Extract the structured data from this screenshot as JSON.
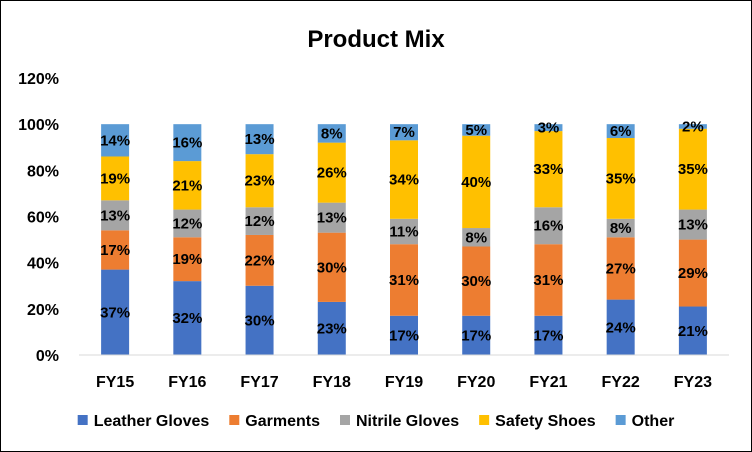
{
  "chart_data": {
    "type": "bar",
    "stacked": true,
    "title": "Product Mix",
    "xlabel": "",
    "ylabel": "",
    "categories": [
      "FY15",
      "FY16",
      "FY17",
      "FY18",
      "FY19",
      "FY20",
      "FY21",
      "FY22",
      "FY23"
    ],
    "ylim": [
      0,
      120
    ],
    "yticks": [
      0,
      20,
      40,
      60,
      80,
      100,
      120
    ],
    "ytick_labels": [
      "0%",
      "20%",
      "40%",
      "60%",
      "80%",
      "100%",
      "120%"
    ],
    "grid": false,
    "legend_position": "bottom",
    "series": [
      {
        "name": "Leather Gloves",
        "color": "#4472C4",
        "values": [
          37,
          32,
          30,
          23,
          17,
          17,
          17,
          24,
          21
        ],
        "labels": [
          "37%",
          "32%",
          "30%",
          "23%",
          "17%",
          "17%",
          "17%",
          "24%",
          "21%"
        ]
      },
      {
        "name": "Garments",
        "color": "#ED7D31",
        "values": [
          17,
          19,
          22,
          30,
          31,
          30,
          31,
          27,
          29
        ],
        "labels": [
          "17%",
          "19%",
          "22%",
          "30%",
          "31%",
          "30%",
          "31%",
          "27%",
          "29%"
        ]
      },
      {
        "name": "Nitrile Gloves",
        "color": "#A5A5A5",
        "values": [
          13,
          12,
          12,
          13,
          11,
          8,
          16,
          8,
          13
        ],
        "labels": [
          "13%",
          "12%",
          "12%",
          "13%",
          "11%",
          "8%",
          "16%",
          "8%",
          "13%"
        ]
      },
      {
        "name": "Safety Shoes",
        "color": "#FFC000",
        "values": [
          19,
          21,
          23,
          26,
          34,
          40,
          33,
          35,
          35
        ],
        "labels": [
          "19%",
          "21%",
          "23%",
          "26%",
          "34%",
          "40%",
          "33%",
          "35%",
          "35%"
        ]
      },
      {
        "name": "Other",
        "color": "#5B9BD5",
        "values": [
          14,
          16,
          13,
          8,
          7,
          5,
          3,
          6,
          2
        ],
        "labels": [
          "14%",
          "16%",
          "13%",
          "8%",
          "7%",
          "5%",
          "3%",
          "6%",
          "2%"
        ]
      }
    ]
  }
}
